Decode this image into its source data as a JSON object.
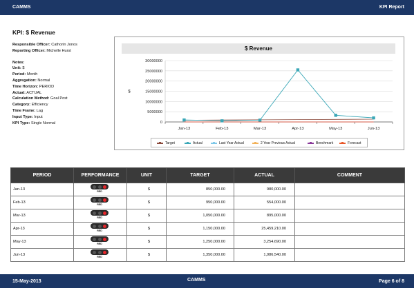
{
  "header": {
    "left": "CAMMS",
    "right": "KPI Report"
  },
  "kpi_title": "KPI: $ Revenue",
  "info": {
    "responsible_officer": {
      "label": "Responsible Officer:",
      "value": "Cathorin Jonos"
    },
    "reporting_officer": {
      "label": "Reporting Officer:",
      "value": "Michelle Hurst"
    },
    "notes_label": "Notes:",
    "items": [
      {
        "label": "Unit:",
        "value": "$"
      },
      {
        "label": "Period:",
        "value": "Month"
      },
      {
        "label": "Aggregation:",
        "value": "Normal"
      },
      {
        "label": "Time Horizon:",
        "value": "PERIOD"
      },
      {
        "label": "Actual:",
        "value": "ACTUAL"
      },
      {
        "label": "Calculation Method:",
        "value": "Goal Post"
      },
      {
        "label": "Category:",
        "value": "Efficiency"
      },
      {
        "label": "Time Frame:",
        "value": "Lag"
      },
      {
        "label": "Input Type:",
        "value": "Input"
      },
      {
        "label": "KPI Type:",
        "value": "Single Normal"
      }
    ]
  },
  "chart_data": {
    "type": "line",
    "title": "$ Revenue",
    "ylabel": "$",
    "xlabel": "",
    "categories": [
      "Jan-13",
      "Feb-13",
      "Mar-13",
      "Apr-13",
      "May-13",
      "Jun-13"
    ],
    "ylim": [
      0,
      30000000
    ],
    "yticks": [
      "0",
      "5000000",
      "10000000",
      "15000000",
      "20000000",
      "25000000",
      "30000000"
    ],
    "grid": true,
    "legend": "bottom",
    "series": [
      {
        "name": "Target",
        "color": "#8b4a3c",
        "marker": "none",
        "values": [
          850000,
          950000,
          1050000,
          1150000,
          1250000,
          1350000
        ]
      },
      {
        "name": "Actual",
        "color": "#3aa7b7",
        "marker": "square",
        "values": [
          980000,
          554000,
          895000,
          25459210,
          3254690,
          1986540
        ]
      },
      {
        "name": "Last Year Actual",
        "color": "#7fc8e8",
        "marker": "none",
        "values": [
          0,
          0,
          0,
          0,
          0,
          0
        ]
      },
      {
        "name": "2 Year Previous Actual",
        "color": "#f2b25a",
        "marker": "none",
        "values": [
          0,
          0,
          0,
          0,
          0,
          0
        ]
      },
      {
        "name": "Benchmark",
        "color": "#8a3a9a",
        "marker": "none",
        "values": [
          0,
          0,
          0,
          0,
          0,
          0
        ]
      },
      {
        "name": "Forecast",
        "color": "#e8572a",
        "marker": "none",
        "values": [
          0,
          0,
          0,
          0,
          0,
          0
        ]
      }
    ]
  },
  "table": {
    "headers": [
      "PERIOD",
      "PERFORMANCE",
      "UNIT",
      "TARGET",
      "ACTUAL",
      "COMMENT"
    ],
    "rows": [
      {
        "period": "Jan-13",
        "performance": "RED",
        "unit": "$",
        "target": "850,000.00",
        "actual": "980,000.00",
        "comment": ""
      },
      {
        "period": "Feb-13",
        "performance": "RED",
        "unit": "$",
        "target": "950,000.00",
        "actual": "554,000.00",
        "comment": ""
      },
      {
        "period": "Mar-13",
        "performance": "RED",
        "unit": "$",
        "target": "1,050,000.00",
        "actual": "895,000.00",
        "comment": ""
      },
      {
        "period": "Apr-13",
        "performance": "RED",
        "unit": "$",
        "target": "1,150,000.00",
        "actual": "25,459,210.00",
        "comment": ""
      },
      {
        "period": "May-13",
        "performance": "RED",
        "unit": "$",
        "target": "1,250,000.00",
        "actual": "3,254,690.00",
        "comment": ""
      },
      {
        "period": "Jun-13",
        "performance": "RED",
        "unit": "$",
        "target": "1,350,000.00",
        "actual": "1,986,540.00",
        "comment": ""
      }
    ]
  },
  "footer": {
    "left": "15-May-2013",
    "center": "CAMMS",
    "right": "Page 6 of 8"
  }
}
